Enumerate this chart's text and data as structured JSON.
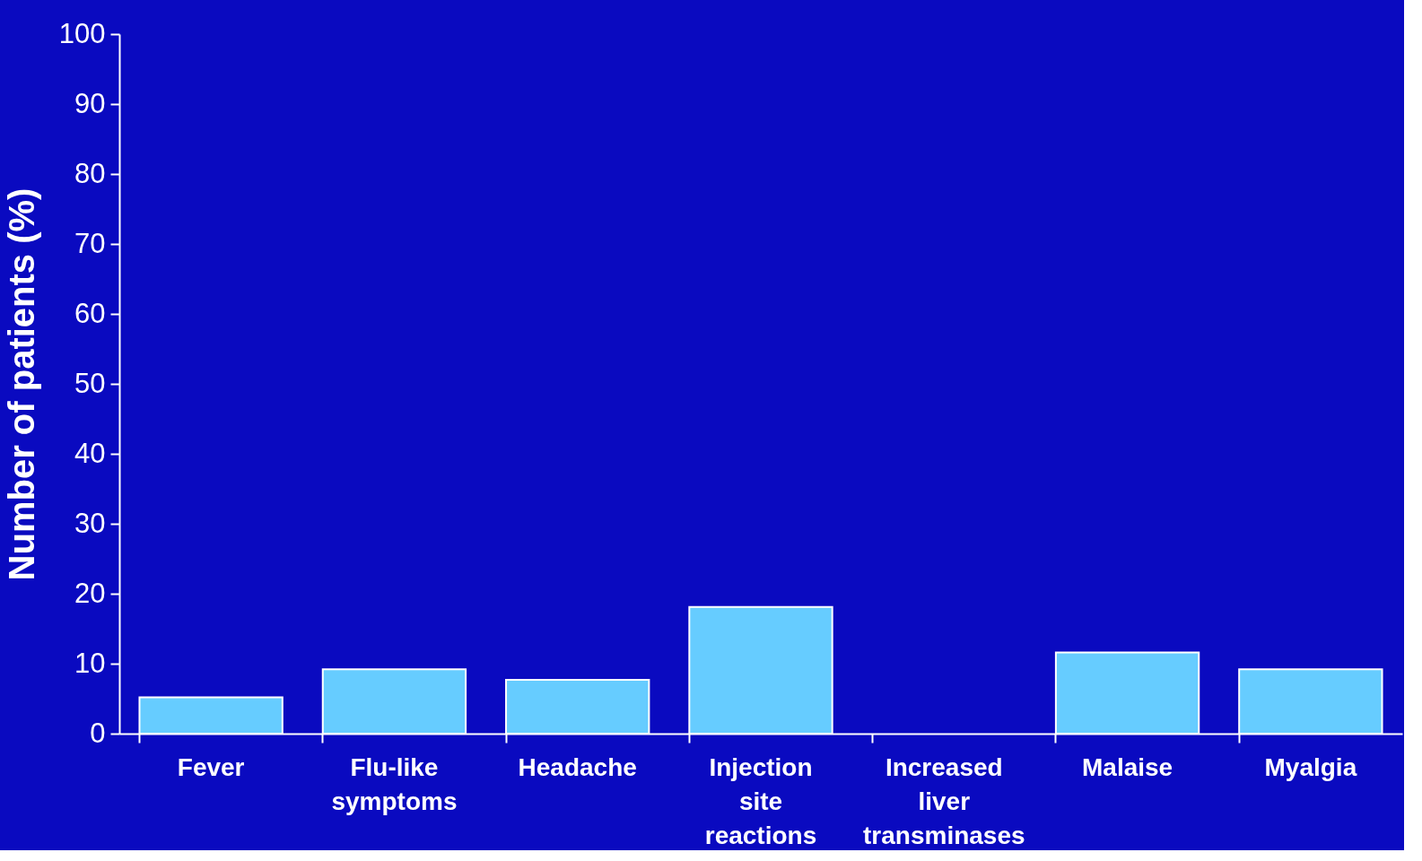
{
  "chart_data": {
    "type": "bar",
    "ylabel": "Number of patients (%)",
    "categories": [
      "Fever",
      "Flu-like symptoms",
      "Headache",
      "Injection site reactions",
      "Increased liver transminases",
      "Malaise",
      "Myalgia"
    ],
    "values": [
      5.2,
      9.2,
      7.7,
      18.1,
      0,
      11.6,
      9.2
    ],
    "color": "#66ccff",
    "ylim": [
      0,
      100
    ],
    "yticks": [
      0,
      10,
      20,
      30,
      40,
      50,
      60,
      70,
      80,
      90,
      100
    ],
    "grid": false
  }
}
